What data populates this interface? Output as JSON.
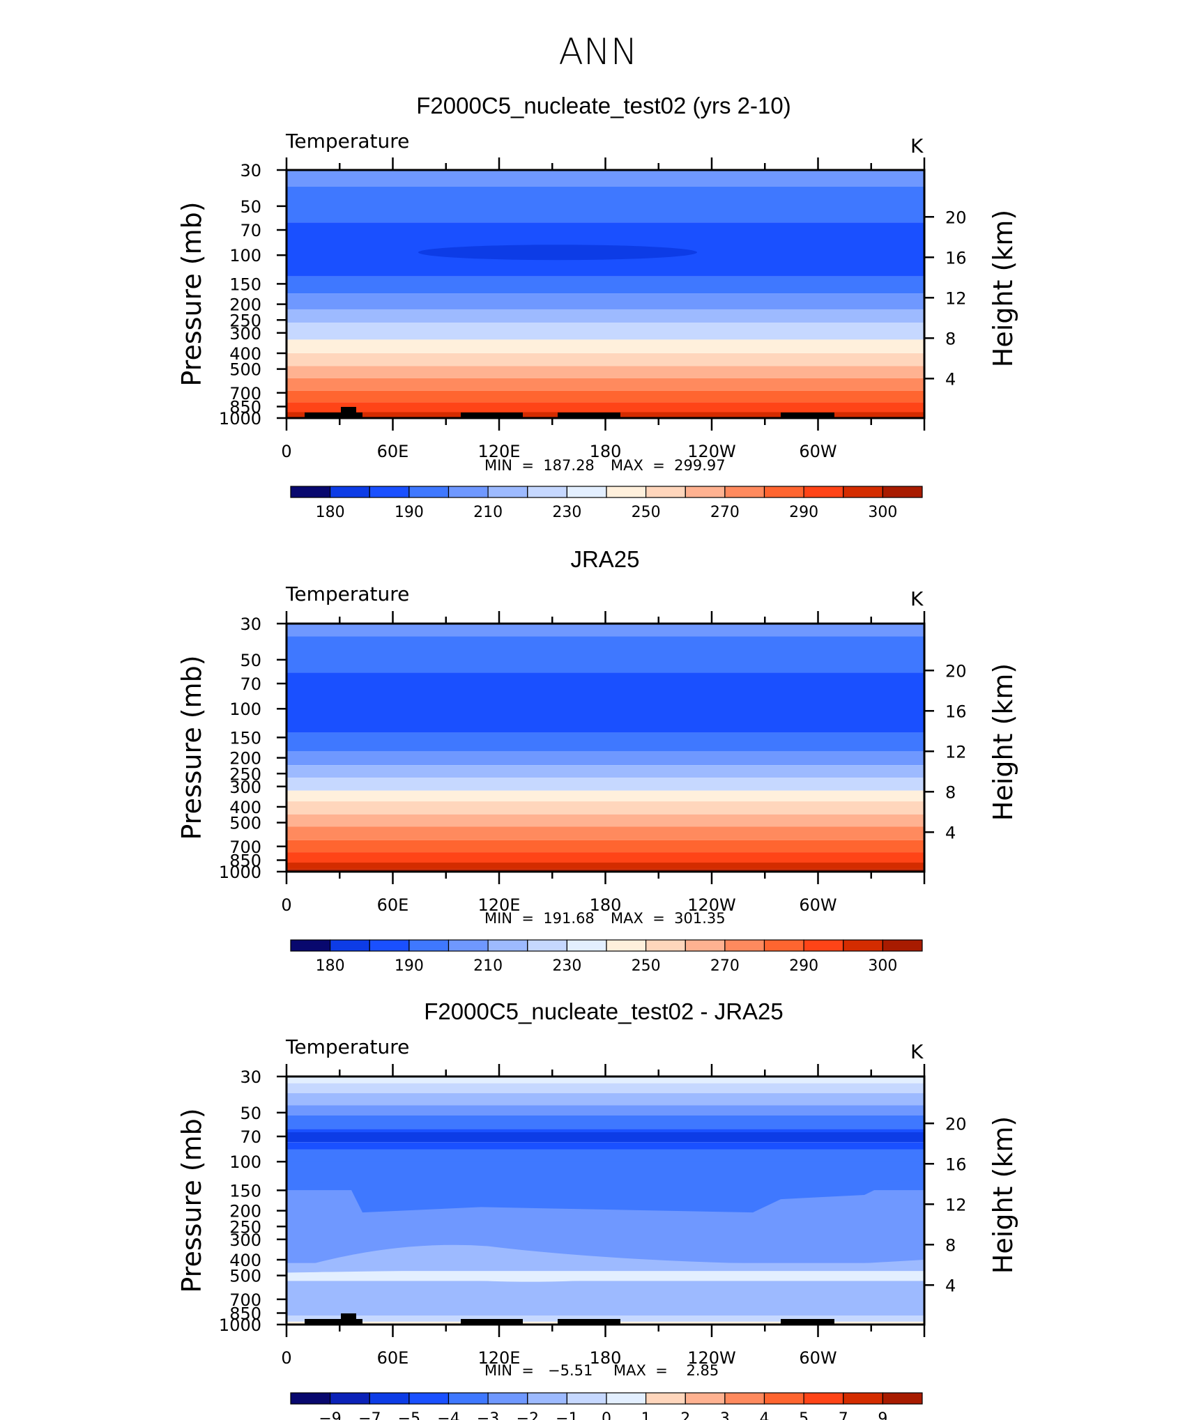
{
  "figure": {
    "title": "ANN"
  },
  "chart_data": [
    {
      "type": "heatmap",
      "title": "F2000C5_nucleate_test02 (yrs 2-10)",
      "variable": "Temperature",
      "units": "K",
      "ylabel": "Pressure (mb)",
      "ylabel_right": "Height (km)",
      "x_tick_labels": [
        "0",
        "60E",
        "120E",
        "180",
        "120W",
        "60W"
      ],
      "y_tick_labels": [
        "30",
        "50",
        "70",
        "100",
        "150",
        "200",
        "250",
        "300",
        "400",
        "500",
        "700",
        "850",
        "1000"
      ],
      "height_tick_labels": [
        "20",
        "16",
        "12",
        "8",
        "4"
      ],
      "min_label": "MIN  =  187.28",
      "max_label": "MAX  =  299.97",
      "colorbar_labels": [
        "180",
        "190",
        "210",
        "230",
        "250",
        "270",
        "290",
        "300"
      ],
      "palette": [
        "#08086e",
        "#0b22b8",
        "#0d3ce6",
        "#1a50ff",
        "#3f78ff",
        "#6f98ff",
        "#9dbaff",
        "#c6d8ff",
        "#e3efff",
        "#fff0dc",
        "#ffd6bc",
        "#ffb291",
        "#ff8a5e",
        "#ff6530",
        "#ff4417",
        "#d42c00",
        "#a81b00",
        "#7e0000"
      ],
      "levels_top_to_bottom": [
        {
          "top": 30,
          "bottom": 38,
          "color_index": 5
        },
        {
          "top": 38,
          "bottom": 63,
          "color_index": 4
        },
        {
          "top": 63,
          "bottom": 135,
          "color_index": 3
        },
        {
          "top": 135,
          "bottom": 172,
          "color_index": 4
        },
        {
          "top": 172,
          "bottom": 215,
          "color_index": 5
        },
        {
          "top": 215,
          "bottom": 260,
          "color_index": 6
        },
        {
          "top": 260,
          "bottom": 330,
          "color_index": 7
        },
        {
          "top": 330,
          "bottom": 400,
          "color_index": 9
        },
        {
          "top": 400,
          "bottom": 480,
          "color_index": 10
        },
        {
          "top": 480,
          "bottom": 570,
          "color_index": 11
        },
        {
          "top": 570,
          "bottom": 680,
          "color_index": 12
        },
        {
          "top": 680,
          "bottom": 800,
          "color_index": 13
        },
        {
          "top": 800,
          "bottom": 920,
          "color_index": 14
        },
        {
          "top": 920,
          "bottom": 1000,
          "color_index": 15
        }
      ]
    },
    {
      "type": "heatmap",
      "title": "JRA25",
      "variable": "Temperature",
      "units": "K",
      "ylabel": "Pressure (mb)",
      "ylabel_right": "Height (km)",
      "x_tick_labels": [
        "0",
        "60E",
        "120E",
        "180",
        "120W",
        "60W"
      ],
      "y_tick_labels": [
        "30",
        "50",
        "70",
        "100",
        "150",
        "200",
        "250",
        "300",
        "400",
        "500",
        "700",
        "850",
        "1000"
      ],
      "height_tick_labels": [
        "20",
        "16",
        "12",
        "8",
        "4"
      ],
      "min_label": "MIN  =  191.68",
      "max_label": "MAX  =  301.35",
      "colorbar_labels": [
        "180",
        "190",
        "210",
        "230",
        "250",
        "270",
        "290",
        "300"
      ],
      "palette": [
        "#08086e",
        "#0b22b8",
        "#0d3ce6",
        "#1a50ff",
        "#3f78ff",
        "#6f98ff",
        "#9dbaff",
        "#c6d8ff",
        "#e3efff",
        "#fff0dc",
        "#ffd6bc",
        "#ffb291",
        "#ff8a5e",
        "#ff6530",
        "#ff4417",
        "#d42c00",
        "#a81b00",
        "#7e0000"
      ],
      "levels_top_to_bottom": [
        {
          "top": 30,
          "bottom": 36,
          "color_index": 5
        },
        {
          "top": 36,
          "bottom": 60,
          "color_index": 4
        },
        {
          "top": 60,
          "bottom": 140,
          "color_index": 3
        },
        {
          "top": 140,
          "bottom": 182,
          "color_index": 4
        },
        {
          "top": 182,
          "bottom": 222,
          "color_index": 5
        },
        {
          "top": 222,
          "bottom": 265,
          "color_index": 6
        },
        {
          "top": 265,
          "bottom": 318,
          "color_index": 7
        },
        {
          "top": 318,
          "bottom": 370,
          "color_index": 9
        },
        {
          "top": 370,
          "bottom": 445,
          "color_index": 10
        },
        {
          "top": 445,
          "bottom": 530,
          "color_index": 11
        },
        {
          "top": 530,
          "bottom": 640,
          "color_index": 12
        },
        {
          "top": 640,
          "bottom": 760,
          "color_index": 13
        },
        {
          "top": 760,
          "bottom": 880,
          "color_index": 14
        },
        {
          "top": 880,
          "bottom": 970,
          "color_index": 15
        },
        {
          "top": 970,
          "bottom": 1000,
          "color_index": 16
        }
      ]
    },
    {
      "type": "heatmap",
      "title": "F2000C5_nucleate_test02 - JRA25",
      "variable": "Temperature",
      "units": "K",
      "ylabel": "Pressure (mb)",
      "ylabel_right": "Height (km)",
      "x_tick_labels": [
        "0",
        "60E",
        "120E",
        "180",
        "120W",
        "60W"
      ],
      "y_tick_labels": [
        "30",
        "50",
        "70",
        "100",
        "150",
        "200",
        "250",
        "300",
        "400",
        "500",
        "700",
        "850",
        "1000"
      ],
      "height_tick_labels": [
        "20",
        "16",
        "12",
        "8",
        "4"
      ],
      "min_label": "MIN  =   −5.51",
      "max_label": "MAX  =    2.85",
      "colorbar_labels": [
        "−9",
        "−7",
        "−5",
        "−4",
        "−3",
        "−2",
        "−1",
        "0",
        "1",
        "2",
        "3",
        "4",
        "5",
        "7",
        "9"
      ],
      "palette": [
        "#08086e",
        "#0b22b8",
        "#0d3ce6",
        "#1a50ff",
        "#3f78ff",
        "#6f98ff",
        "#9dbaff",
        "#c6d8ff",
        "#e3efff",
        "#fff0dc",
        "#ffd6bc",
        "#ffb291",
        "#ff8a5e",
        "#ff6530",
        "#ff4417",
        "#d42c00",
        "#a81b00",
        "#7e0000"
      ],
      "levels_top_to_bottom": [
        {
          "top": 30,
          "bottom": 33,
          "color_index": 8
        },
        {
          "top": 33,
          "bottom": 38,
          "color_index": 7
        },
        {
          "top": 38,
          "bottom": 45,
          "color_index": 6
        },
        {
          "top": 45,
          "bottom": 52,
          "color_index": 5
        },
        {
          "top": 52,
          "bottom": 63,
          "color_index": 4
        },
        {
          "top": 63,
          "bottom": 66,
          "color_index": 3
        },
        {
          "top": 66,
          "bottom": 76,
          "color_index": 2
        },
        {
          "top": 76,
          "bottom": 84,
          "color_index": 3
        },
        {
          "top": 84,
          "bottom": 150,
          "color_index": 4
        },
        {
          "top": 150,
          "bottom": 420,
          "color_index": 5
        },
        {
          "top": 420,
          "bottom": 470,
          "color_index": 6
        },
        {
          "top": 470,
          "bottom": 540,
          "color_index": 8
        },
        {
          "top": 540,
          "bottom": 880,
          "color_index": 6
        },
        {
          "top": 880,
          "bottom": 960,
          "color_index": 7
        },
        {
          "top": 960,
          "bottom": 1000,
          "color_index": 9
        }
      ]
    }
  ]
}
